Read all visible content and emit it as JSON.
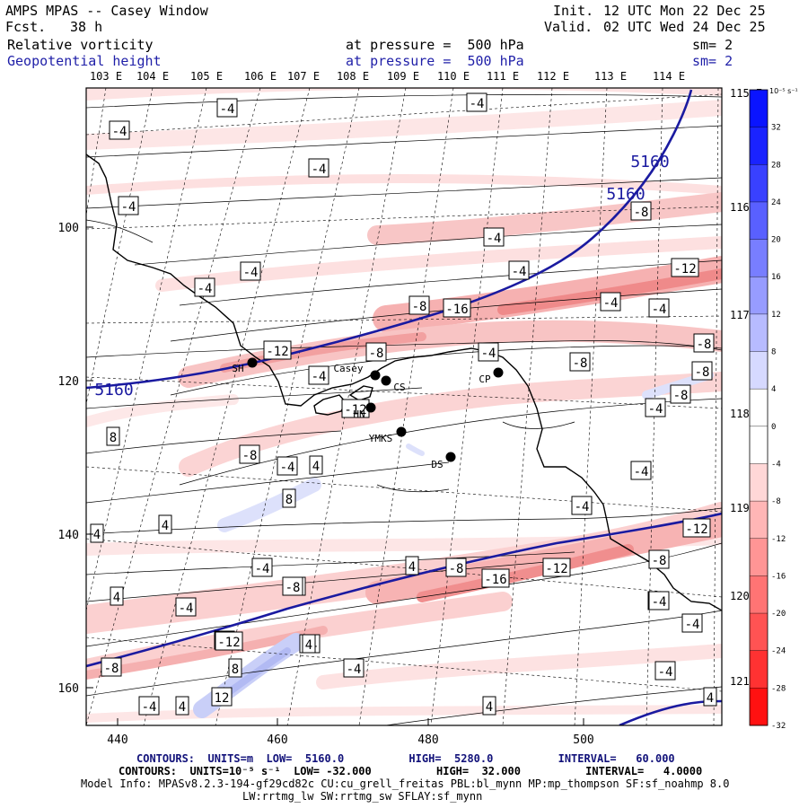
{
  "header": {
    "model": "AMPS MPAS -- Casey Window",
    "forecast_label": "Fcst.",
    "forecast_value": "38 h",
    "init_label": "Init.",
    "init_value": "12 UTC Mon 22 Dec 25",
    "valid_label": "Valid.",
    "valid_value": "02 UTC Wed 24 Dec 25",
    "field1_name": "Relative vorticity",
    "field1_level": "at pressure =  500 hPa",
    "field1_sm": "sm= 2",
    "field2_name": "Geopotential height",
    "field2_level": "at pressure =  500 hPa",
    "field2_sm": "sm= 2"
  },
  "colors": {
    "frame": "#000000",
    "height_contour": "#1a1aa0",
    "text_blue": "#1f1fa8",
    "positive_vorticity": "#e8373a",
    "negative_vorticity": "#3b4bd8"
  },
  "axes": {
    "lon_top": [
      "103 E",
      "104 E",
      "105 E",
      "106 E",
      "107 E",
      "108 E",
      "109 E",
      "110 E",
      "111 E",
      "112 E",
      "113 E",
      "114 E"
    ],
    "lon_right": [
      "115 E",
      "116 E",
      "117 E",
      "118 E",
      "119 E",
      "120 E",
      "121 E"
    ],
    "x_ticks": [
      "440",
      "460",
      "480",
      "500"
    ],
    "y_ticks": [
      "100",
      "120",
      "140",
      "160"
    ]
  },
  "colorbar": {
    "units": "10⁻⁵ s⁻¹",
    "levels": [
      32,
      28,
      24,
      20,
      16,
      12,
      8,
      4,
      0,
      -4,
      -8,
      -12,
      -16,
      -20,
      -24,
      -28,
      -32
    ],
    "labels": [
      "32",
      "28",
      "24",
      "20",
      "16",
      "12",
      "8",
      "4",
      "0",
      "-4",
      "-8",
      "-12",
      "-16",
      "-20",
      "-24",
      "-28",
      "-32"
    ]
  },
  "stations": [
    {
      "code": "SH"
    },
    {
      "code": "Casey"
    },
    {
      "code": "CS"
    },
    {
      "code": "CP"
    },
    {
      "code": "HN"
    },
    {
      "code": "YMKS"
    },
    {
      "code": "DS"
    }
  ],
  "height_labels": [
    "5160",
    "5160",
    "5160"
  ],
  "vorticity_labels": [
    "-4",
    "-4",
    "-4",
    "-4",
    "-4",
    "-4",
    "-4",
    "-4",
    "-4",
    "-8",
    "-8",
    "-12",
    "-16",
    "-4",
    "-12",
    "-8",
    "-4",
    "-8",
    "-4",
    "-8",
    "-4",
    "-12",
    "-8",
    "-8",
    "-4",
    "4",
    "8",
    "4",
    "-8",
    "-4",
    "4",
    "8",
    "-4",
    "4",
    "-4",
    "-8",
    "-4",
    "-12",
    "-8",
    "4",
    "-4",
    "-8",
    "-16",
    "-12",
    "-8",
    "-4",
    "-12",
    "-4",
    "-4",
    "8",
    "4",
    "12",
    "4",
    "-4",
    "4",
    "-4",
    "-4",
    "-4",
    "4",
    "-8",
    "-4"
  ],
  "footer": {
    "line1": "CONTOURS:  UNITS=m  LOW=  5160.0          HIGH=  5280.0          INTERVAL=   60.000",
    "line2": "CONTOURS:  UNITS=10⁻⁵ s⁻¹  LOW= -32.000          HIGH=  32.000          INTERVAL=   4.0000",
    "line3": "Model Info: MPASv8.2.3-194-gf29cd82c CU:cu_grell_freitas PBL:bl_mynn MP:mp_thompson SF:sf_noahmp 8.0",
    "line4": "LW:rrtmg_lw SW:rrtmg_sw SFLAY:sf_mynn"
  }
}
